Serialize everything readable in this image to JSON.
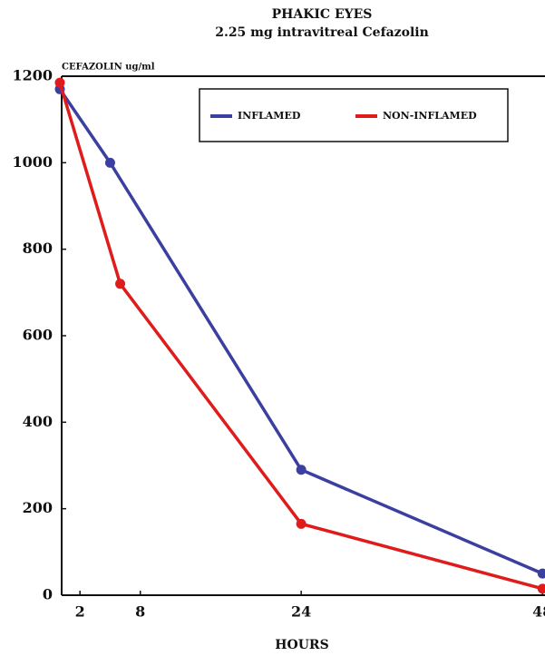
{
  "chart_data": {
    "type": "line",
    "title": "PHAKIC EYES",
    "subtitle": "2.25 mg   intravitreal Cefazolin",
    "y_label": "CEFAZOLIN ug/ml",
    "x_label": "HOURS",
    "xlim": [
      0,
      48
    ],
    "xticks": [
      2,
      8,
      24,
      48
    ],
    "ylim": [
      0,
      1200
    ],
    "yticks": [
      0,
      200,
      400,
      600,
      800,
      1000,
      1200
    ],
    "series": [
      {
        "name": "INFLAMED",
        "color": "#3b3fa0",
        "x": [
          0,
          5,
          24,
          48
        ],
        "values": [
          1170,
          1000,
          290,
          50
        ]
      },
      {
        "name": "NON-INFLAMED",
        "color": "#e01b1b",
        "x": [
          0,
          6,
          24,
          48
        ],
        "values": [
          1185,
          720,
          165,
          15
        ]
      }
    ]
  }
}
